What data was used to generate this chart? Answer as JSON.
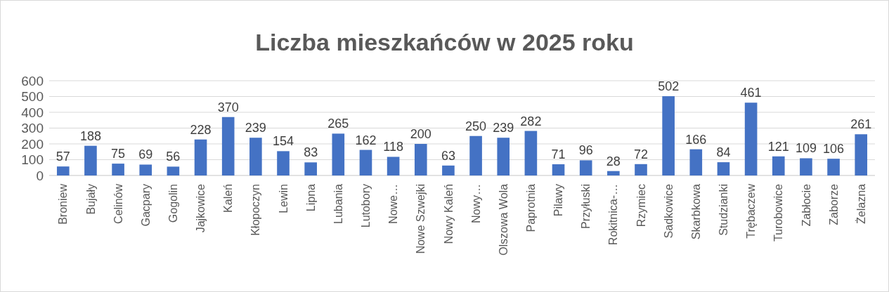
{
  "chart_data": {
    "type": "bar",
    "title": "Liczba mieszkańców w 2025 roku",
    "categories": [
      "Broniew",
      "Bujały",
      "Celinów",
      "Gacpary",
      "Gogolin",
      "Jajkowice",
      "Kaleń",
      "Kłopoczyn",
      "Lewin",
      "Lipna",
      "Lubania",
      "Lutobory",
      "Nowe…",
      "Nowe Szwejki",
      "Nowy Kaleń",
      "Nowy…",
      "Olszowa Wola",
      "Paprotnia",
      "Pilawy",
      "Przyłuski",
      "Rokitnica-…",
      "Rzymiec",
      "Sadkowice",
      "Skarbkowa",
      "Studzianki",
      "Trębaczew",
      "Turobowice",
      "Zabłocie",
      "Zaborze",
      "Żelazna"
    ],
    "values": [
      57,
      188,
      75,
      69,
      56,
      228,
      370,
      239,
      154,
      83,
      265,
      162,
      118,
      200,
      63,
      250,
      239,
      282,
      71,
      96,
      28,
      72,
      502,
      166,
      84,
      461,
      121,
      109,
      106,
      261
    ],
    "color": "#4472c4",
    "ylim": [
      0,
      600
    ],
    "yticks": [
      0,
      100,
      200,
      300,
      400,
      500,
      600
    ],
    "grid": "y",
    "data_labels": true
  }
}
